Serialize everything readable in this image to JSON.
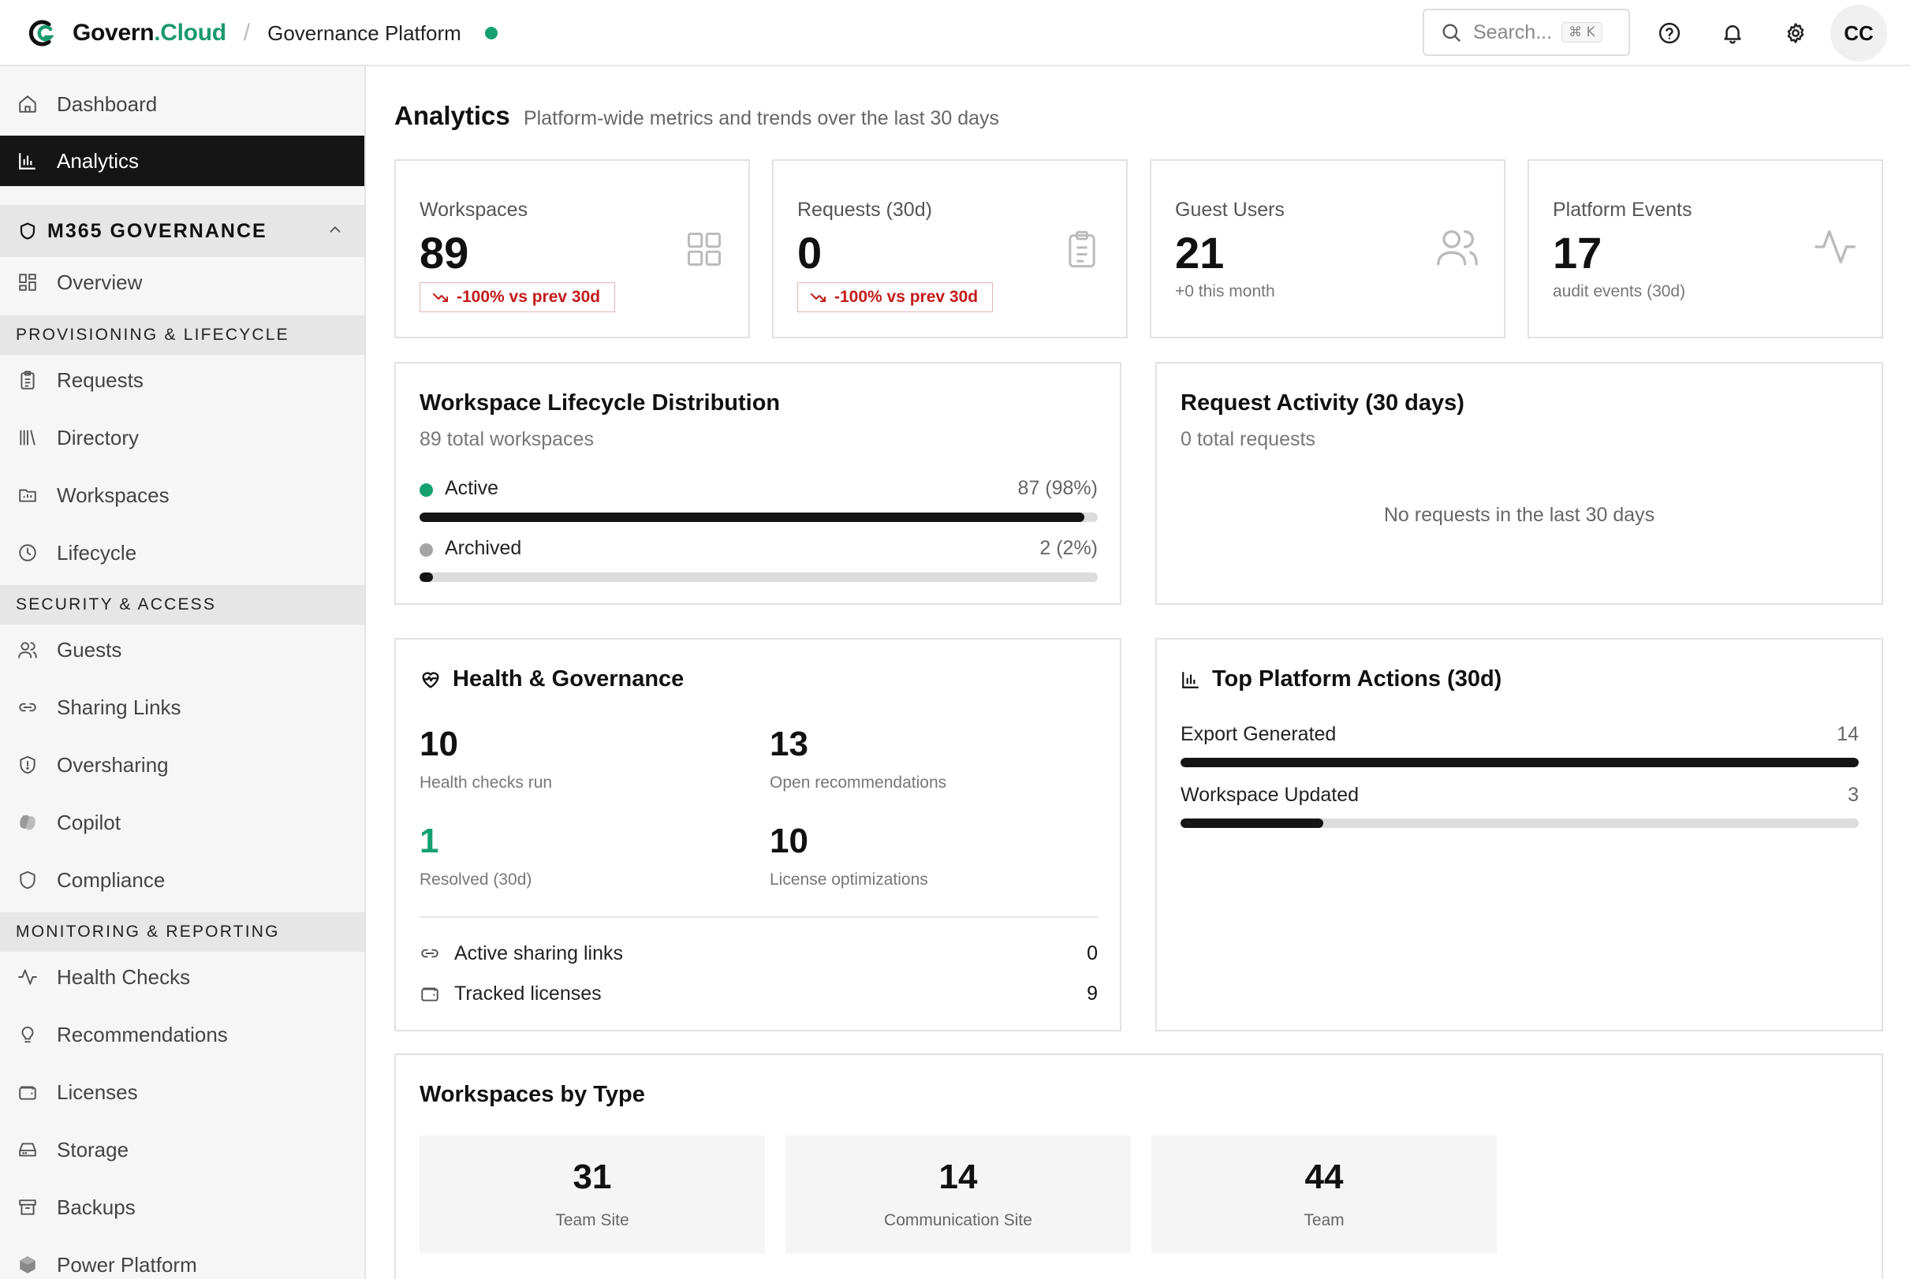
{
  "brand": {
    "name_main": "Govern",
    "name_accent": ".Cloud",
    "separator": "/",
    "subtitle": "Governance Platform",
    "status_color": "#14a06f"
  },
  "search": {
    "placeholder": "Search...",
    "shortcut": "⌘ K"
  },
  "user": {
    "initials": "CC"
  },
  "sidebar": {
    "top_items": [
      {
        "label": "Dashboard",
        "icon": "home-icon"
      },
      {
        "label": "Analytics",
        "icon": "bar-chart-icon",
        "active": true
      }
    ],
    "group": {
      "label": "M365 GOVERNANCE",
      "icon": "shield-icon",
      "expanded": true
    },
    "overview": {
      "label": "Overview",
      "icon": "grid-icon"
    },
    "sections": [
      {
        "title": "PROVISIONING & LIFECYCLE",
        "items": [
          {
            "label": "Requests",
            "icon": "clipboard-icon"
          },
          {
            "label": "Directory",
            "icon": "library-icon"
          },
          {
            "label": "Workspaces",
            "icon": "folder-icon"
          },
          {
            "label": "Lifecycle",
            "icon": "clock-icon"
          }
        ]
      },
      {
        "title": "SECURITY & ACCESS",
        "items": [
          {
            "label": "Guests",
            "icon": "users-icon"
          },
          {
            "label": "Sharing Links",
            "icon": "link-icon"
          },
          {
            "label": "Oversharing",
            "icon": "shield-alert-icon"
          },
          {
            "label": "Copilot",
            "icon": "copilot-icon"
          },
          {
            "label": "Compliance",
            "icon": "shield-icon"
          }
        ]
      },
      {
        "title": "MONITORING & REPORTING",
        "items": [
          {
            "label": "Health Checks",
            "icon": "activity-icon"
          },
          {
            "label": "Recommendations",
            "icon": "lightbulb-icon"
          },
          {
            "label": "Licenses",
            "icon": "wallet-icon"
          },
          {
            "label": "Storage",
            "icon": "hard-drive-icon"
          },
          {
            "label": "Backups",
            "icon": "archive-icon"
          },
          {
            "label": "Power Platform",
            "icon": "hexagon-icon"
          }
        ]
      }
    ]
  },
  "page": {
    "title": "Analytics",
    "subtitle": "Platform-wide metrics and trends over the last 30 days"
  },
  "stats": [
    {
      "label": "Workspaces",
      "value": "89",
      "badge": "-100% vs prev 30d",
      "icon": "grid-icon"
    },
    {
      "label": "Requests (30d)",
      "value": "0",
      "badge": "-100% vs prev 30d",
      "icon": "clipboard-icon"
    },
    {
      "label": "Guest Users",
      "value": "21",
      "note": "+0 this month",
      "icon": "users-icon"
    },
    {
      "label": "Platform Events",
      "value": "17",
      "note": "audit events (30d)",
      "icon": "activity-icon"
    }
  ],
  "lifecycle": {
    "title": "Workspace Lifecycle Distribution",
    "subtitle": "89 total workspaces",
    "rows": [
      {
        "label": "Active",
        "value": "87 (98%)",
        "fraction": 0.98,
        "dot_color": "#14a06f"
      },
      {
        "label": "Archived",
        "value": "2 (2%)",
        "fraction": 0.02,
        "dot_color": "#a5a5a5"
      }
    ]
  },
  "request_activity": {
    "title": "Request Activity (30 days)",
    "subtitle": "0 total requests",
    "empty": "No requests in the last 30 days"
  },
  "health": {
    "title": "Health & Governance",
    "metrics": [
      {
        "value": "10",
        "label": "Health checks run"
      },
      {
        "value": "13",
        "label": "Open recommendations"
      },
      {
        "value": "1",
        "label": "Resolved (30d)",
        "accent": "#14a06f"
      },
      {
        "value": "10",
        "label": "License optimizations"
      }
    ],
    "list": [
      {
        "label": "Active sharing links",
        "value": "0",
        "icon": "link-icon"
      },
      {
        "label": "Tracked licenses",
        "value": "9",
        "icon": "wallet-icon"
      }
    ]
  },
  "top_actions": {
    "title": "Top Platform Actions (30d)",
    "rows": [
      {
        "label": "Export Generated",
        "value": "14",
        "fraction": 1.0
      },
      {
        "label": "Workspace Updated",
        "value": "3",
        "fraction": 0.21
      }
    ]
  },
  "workspaces_by_type": {
    "title": "Workspaces by Type",
    "types": [
      {
        "value": "31",
        "label": "Team Site"
      },
      {
        "value": "14",
        "label": "Communication Site"
      },
      {
        "value": "44",
        "label": "Team"
      }
    ]
  }
}
